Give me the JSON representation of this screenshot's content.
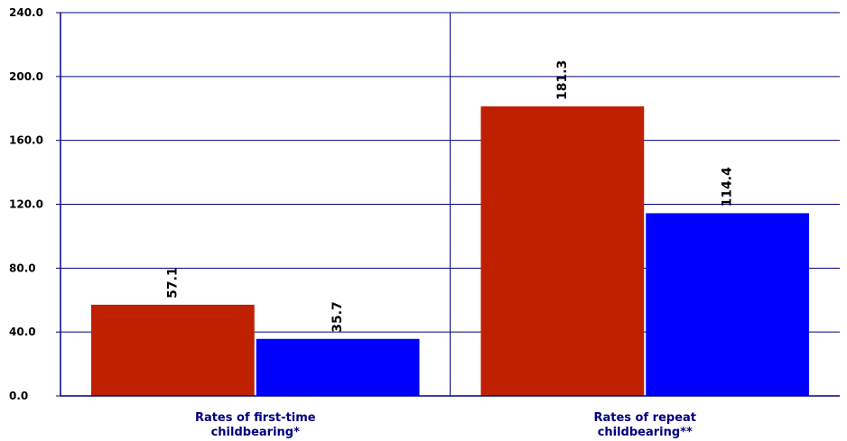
{
  "chart_data": {
    "type": "bar",
    "categories": [
      [
        "Rates of first-time",
        "childbearing*"
      ],
      [
        "Rates of repeat",
        "childbearing**"
      ]
    ],
    "series": [
      {
        "values": [
          57.1,
          181.3
        ],
        "color": "#bf2000"
      },
      {
        "values": [
          35.7,
          114.4
        ],
        "color": "#0000ff"
      }
    ],
    "ylim": [
      0,
      240
    ],
    "yticks": [
      0,
      40,
      80,
      120,
      160,
      200,
      240
    ],
    "ytick_labels": [
      "0.0",
      "40.0",
      "80.0",
      "120.0",
      "160.0",
      "200.0",
      "240.0"
    ],
    "grid": true,
    "legend": "none",
    "axis_color": "#000080",
    "title": "",
    "xlabel": "",
    "ylabel": ""
  }
}
